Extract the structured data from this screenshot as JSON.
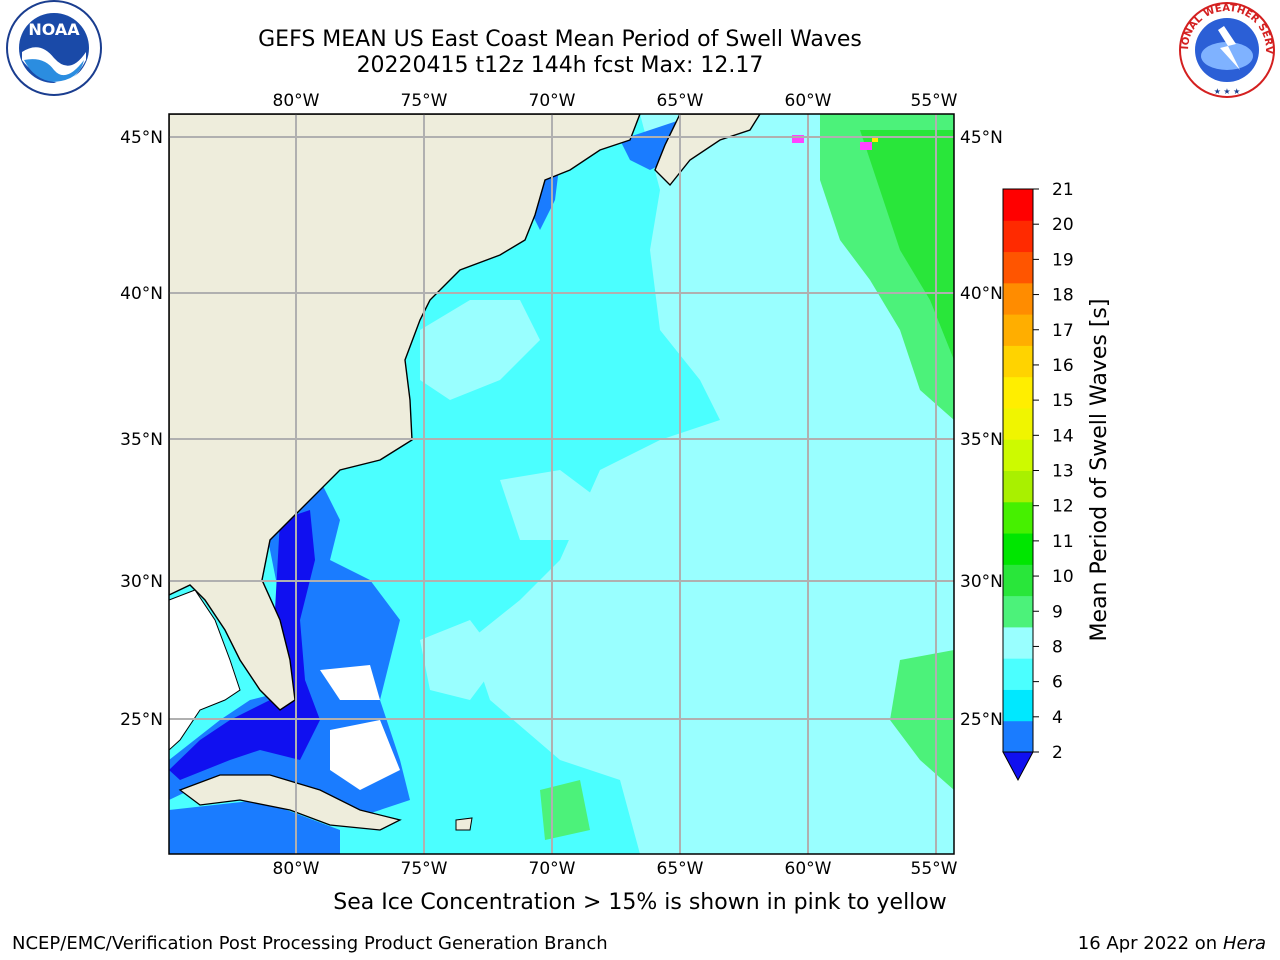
{
  "title": {
    "line1": "GEFS MEAN US East Coast Mean Period of Swell Waves",
    "line2": "20220415 t12z 144h fcst   Max: 12.17"
  },
  "map": {
    "lon_labels": [
      "80°W",
      "75°W",
      "70°W",
      "65°W",
      "60°W",
      "55°W"
    ],
    "lat_labels": [
      "45°N",
      "40°N",
      "35°N",
      "30°N",
      "25°N"
    ]
  },
  "colorbar": {
    "label": "Mean Period of Swell Waves [s]",
    "ticks": [
      "2",
      "4",
      "6",
      "8",
      "9",
      "10",
      "11",
      "12",
      "13",
      "14",
      "15",
      "16",
      "17",
      "18",
      "19",
      "20",
      "21"
    ],
    "colors": [
      "#1a7cff",
      "#00e8ff",
      "#4bffff",
      "#99ffff",
      "#4cf27a",
      "#29e63a",
      "#00e600",
      "#46f000",
      "#a9f000",
      "#cdfa00",
      "#f0f500",
      "#ffee00",
      "#ffd300",
      "#ffae00",
      "#ff8c00",
      "#ff5500",
      "#ff2a00",
      "#ff0000"
    ],
    "extend_color": "#1010f0"
  },
  "colors": {
    "land": "#eeeddc",
    "ocean_deep": "#4bffff",
    "ocean_light": "#99ffff",
    "shelf": "#1a7cff",
    "shelf_dark": "#1010f0",
    "green": "#4cf27a",
    "grid": "#b0b0b0"
  },
  "footer": {
    "note": "Sea Ice Concentration > 15% is shown in pink to yellow",
    "credit_left": "NCEP/EMC/Verification Post Processing Product Generation Branch",
    "credit_date": "16 Apr 2022 on ",
    "credit_machine": "Hera"
  },
  "logos": {
    "noaa_text": "NOAA",
    "nws_text": "NATIONAL WEATHER SERVICE"
  }
}
